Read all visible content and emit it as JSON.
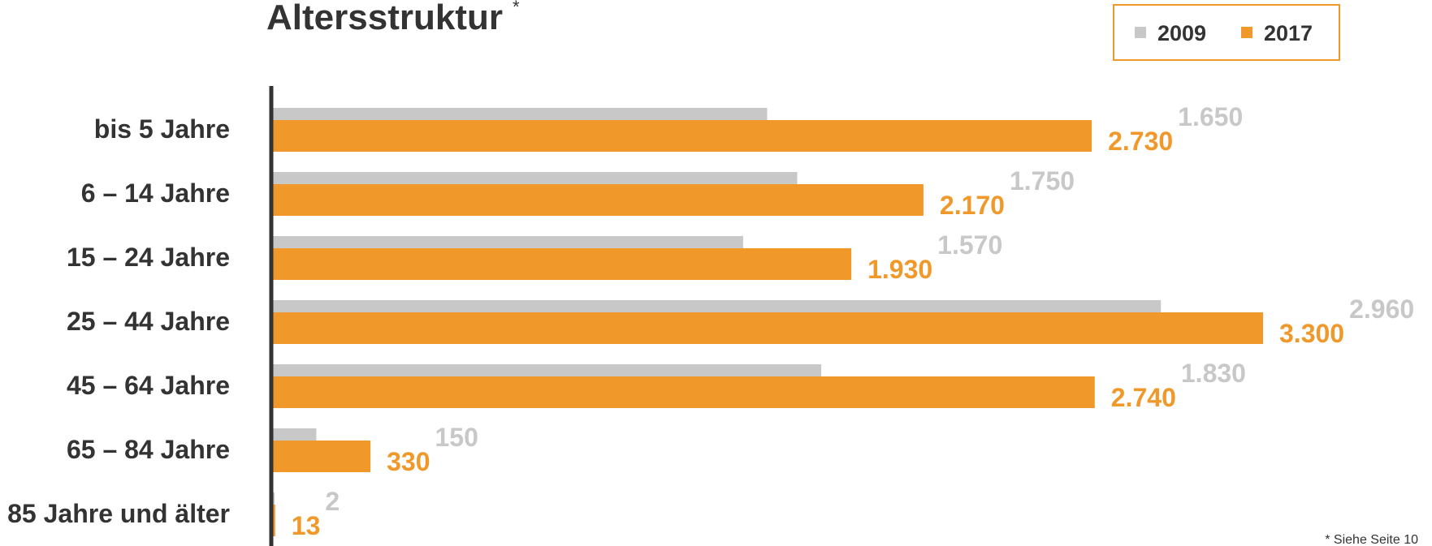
{
  "chart_data": {
    "type": "bar",
    "orientation": "horizontal",
    "title": "Altersstruktur",
    "title_mark": "*",
    "categories": [
      "bis 5 Jahre",
      "6 – 14 Jahre",
      "15 – 24 Jahre",
      "25 – 44 Jahre",
      "45 – 64 Jahre",
      "65 – 84 Jahre",
      "85 Jahre und älter"
    ],
    "series": [
      {
        "name": "2009",
        "color": "#c8c8c8",
        "values": [
          1650,
          1750,
          1570,
          2960,
          1830,
          150,
          2
        ],
        "labels": [
          "1.650",
          "1.750",
          "1.570",
          "2.960",
          "1.830",
          "150",
          "2"
        ]
      },
      {
        "name": "2017",
        "color": "#f0992a",
        "values": [
          2730,
          2170,
          1930,
          3300,
          2740,
          330,
          13
        ],
        "labels": [
          "2.730",
          "2.170",
          "1.930",
          "3.300",
          "2.740",
          "330",
          "13"
        ]
      }
    ],
    "xlim": [
      0,
      3300
    ],
    "grid": false,
    "legend_position": "top-right",
    "axis_color": "#333333"
  },
  "footnote": "* Siehe Seite 10"
}
